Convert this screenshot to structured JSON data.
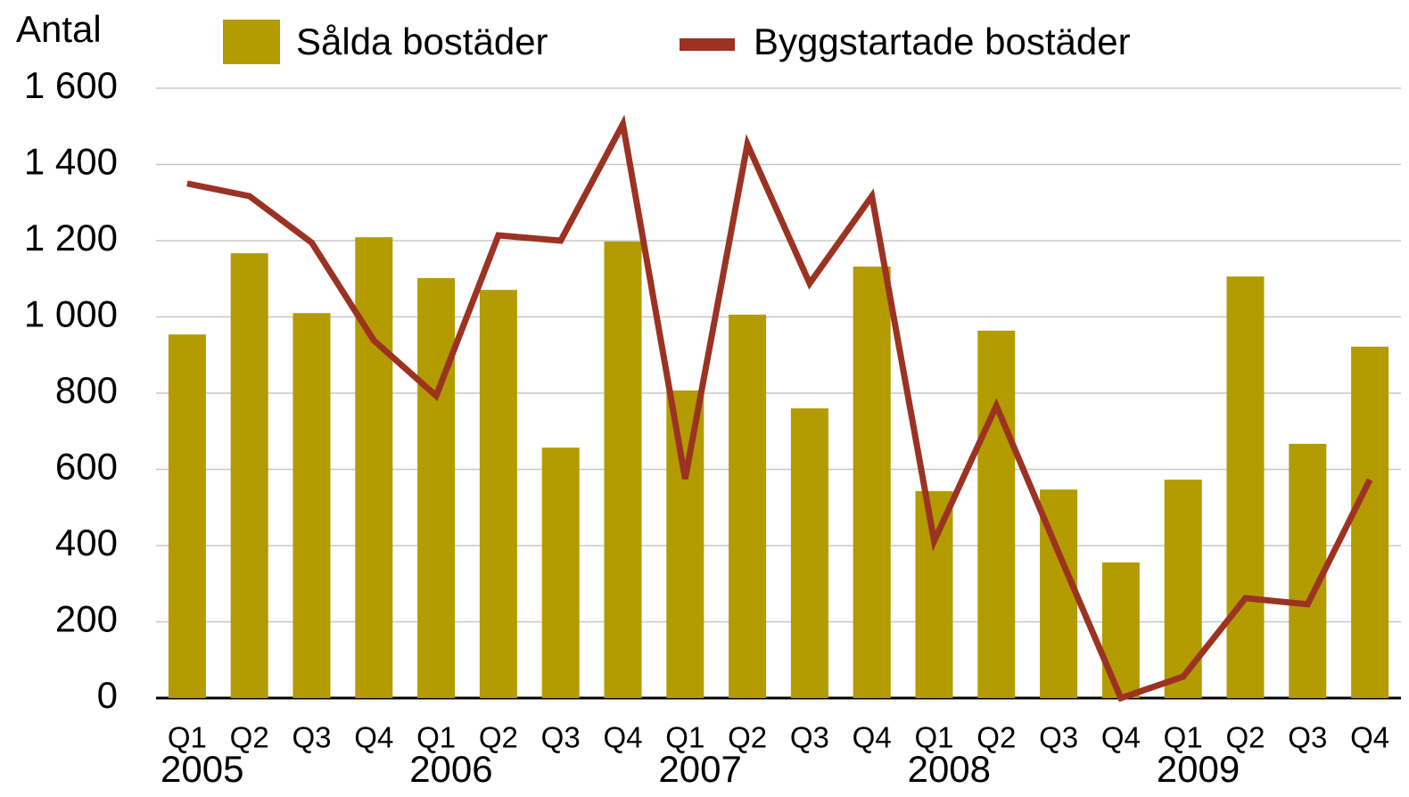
{
  "chart_data": {
    "type": "bar_line",
    "y_axis_label": "Antal",
    "categories": [
      "Q1",
      "Q2",
      "Q3",
      "Q4",
      "Q1",
      "Q2",
      "Q3",
      "Q4",
      "Q1",
      "Q2",
      "Q3",
      "Q4",
      "Q1",
      "Q2",
      "Q3",
      "Q4",
      "Q1",
      "Q2",
      "Q3",
      "Q4"
    ],
    "groups": [
      {
        "label": "2005",
        "size": 4
      },
      {
        "label": "2006",
        "size": 4
      },
      {
        "label": "2007",
        "size": 4
      },
      {
        "label": "2008",
        "size": 4
      },
      {
        "label": "2009",
        "size": 4
      }
    ],
    "series": [
      {
        "name": "Sålda bostäder",
        "type": "bar",
        "color": "#b39b00",
        "values": [
          954,
          1167,
          1010,
          1209,
          1102,
          1071,
          657,
          1198,
          807,
          1006,
          760,
          1132,
          543,
          964,
          547,
          356,
          573,
          1106,
          667,
          922
        ]
      },
      {
        "name": "Byggstartade bostäder",
        "type": "line",
        "color": "#9c3222",
        "values": [
          1350,
          1317,
          1195,
          938,
          793,
          1214,
          1200,
          1506,
          575,
          1453,
          1088,
          1317,
          412,
          767,
          381,
          0,
          56,
          262,
          246,
          573
        ]
      }
    ],
    "ylim": [
      0,
      1600
    ],
    "yticks": [
      0,
      200,
      400,
      600,
      800,
      {
        "value": 1000,
        "label": "1 000"
      },
      {
        "value": 1200,
        "label": "1 200"
      },
      {
        "value": 1400,
        "label": "1 400"
      },
      {
        "value": 1600,
        "label": "1 600"
      }
    ],
    "grid": true
  }
}
